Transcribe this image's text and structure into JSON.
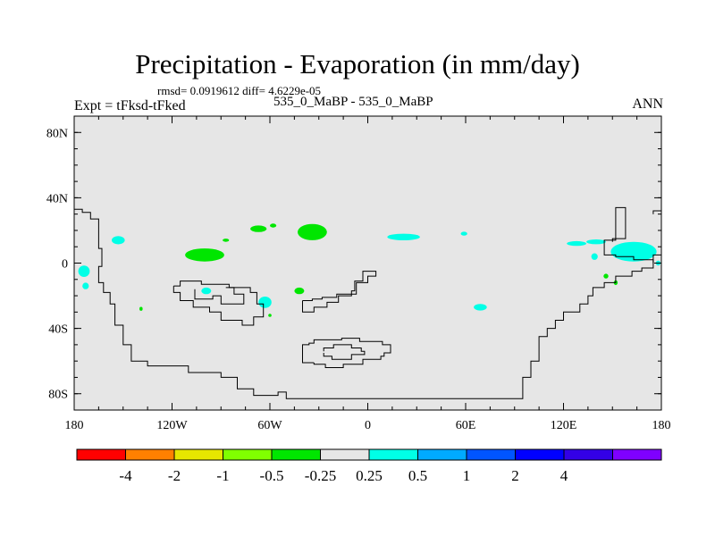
{
  "title": "Precipitation - Evaporation (in mm/day)",
  "stats": "rmsd= 0.0919612 diff= 4.6229e-05",
  "left_subtitle": "Expt = tFksd-tFked",
  "center_subtitle": "535_0_MaBP - 535_0_MaBP",
  "right_subtitle": "ANN",
  "chart_data": {
    "type": "heatmap",
    "title": "Precipitation - Evaporation (in mm/day)",
    "units": "mm/day",
    "xlim": [
      -180,
      180
    ],
    "ylim": [
      -90,
      90
    ],
    "x_ticks": [
      {
        "value": -180,
        "label": "180"
      },
      {
        "value": -120,
        "label": "120W"
      },
      {
        "value": -60,
        "label": "60W"
      },
      {
        "value": 0,
        "label": "0"
      },
      {
        "value": 60,
        "label": "60E"
      },
      {
        "value": 120,
        "label": "120E"
      },
      {
        "value": 180,
        "label": "180"
      }
    ],
    "y_ticks": [
      {
        "value": 80,
        "label": "80N"
      },
      {
        "value": 40,
        "label": "40N"
      },
      {
        "value": 0,
        "label": "0"
      },
      {
        "value": -40,
        "label": "40S"
      },
      {
        "value": -80,
        "label": "80S"
      }
    ],
    "background_color": "#e6e6e6",
    "colorbar": {
      "colors": [
        "#ff0000",
        "#ff8000",
        "#e6e600",
        "#80ff00",
        "#00e600",
        "#e6e6e6",
        "#00ffe6",
        "#00aaff",
        "#0055ff",
        "#0000ff",
        "#3300e6",
        "#7f00ff"
      ],
      "labels": [
        "-4",
        "-2",
        "-1",
        "-0.5",
        "-0.25",
        "0.25",
        "0.5",
        "1",
        "2",
        "4"
      ]
    },
    "anomaly_patches": [
      {
        "lon": -174,
        "lat": -5,
        "rlon": 3.5,
        "rlat": 3.5,
        "category": "0.25 to 0.5",
        "color": "#00ffe6"
      },
      {
        "lon": -173,
        "lat": -14,
        "rlon": 2,
        "rlat": 2,
        "category": "0.25 to 0.5",
        "color": "#00ffe6"
      },
      {
        "lon": -153,
        "lat": 14,
        "rlon": 4,
        "rlat": 2.5,
        "category": "0.25 to 0.5",
        "color": "#00ffe6"
      },
      {
        "lon": -100,
        "lat": 5,
        "rlon": 12,
        "rlat": 4,
        "category": "-0.5 to -0.25",
        "color": "#00e600"
      },
      {
        "lon": -87,
        "lat": 14,
        "rlon": 2,
        "rlat": 1,
        "category": "-0.5 to -0.25",
        "color": "#00e600"
      },
      {
        "lon": -99,
        "lat": -17,
        "rlon": 3,
        "rlat": 2,
        "category": "0.25 to 0.5",
        "color": "#00ffe6"
      },
      {
        "lon": -63,
        "lat": -24,
        "rlon": 4,
        "rlat": 3.5,
        "category": "0.25 to 0.5",
        "color": "#00ffe6"
      },
      {
        "lon": -67,
        "lat": 21,
        "rlon": 5,
        "rlat": 2,
        "category": "-0.5 to -0.25",
        "color": "#00e600"
      },
      {
        "lon": -58,
        "lat": 23,
        "rlon": 2,
        "rlat": 1.2,
        "category": "-0.5 to -0.25",
        "color": "#00e600"
      },
      {
        "lon": -34,
        "lat": 19,
        "rlon": 9,
        "rlat": 5,
        "category": "-0.5 to -0.25",
        "color": "#00e600"
      },
      {
        "lon": -42,
        "lat": -17,
        "rlon": 3,
        "rlat": 2,
        "category": "-0.5 to -0.25",
        "color": "#00e600"
      },
      {
        "lon": -60,
        "lat": -32,
        "rlon": 1,
        "rlat": 1,
        "category": "-0.5 to -0.25",
        "color": "#00e600"
      },
      {
        "lon": -139,
        "lat": -28,
        "rlon": 1,
        "rlat": 1.2,
        "category": "-0.5 to -0.25",
        "color": "#00e600"
      },
      {
        "lon": 22,
        "lat": 16,
        "rlon": 10,
        "rlat": 2,
        "category": "0.25 to 0.5",
        "color": "#00ffe6"
      },
      {
        "lon": 59,
        "lat": 18,
        "rlon": 2,
        "rlat": 1.2,
        "category": "0.25 to 0.5",
        "color": "#00ffe6"
      },
      {
        "lon": 69,
        "lat": -27,
        "rlon": 4,
        "rlat": 2,
        "category": "0.25 to 0.5",
        "color": "#00ffe6"
      },
      {
        "lon": 128,
        "lat": 12,
        "rlon": 6,
        "rlat": 1.5,
        "category": "0.25 to 0.5",
        "color": "#00ffe6"
      },
      {
        "lon": 140,
        "lat": 13,
        "rlon": 6,
        "rlat": 1.5,
        "category": "0.25 to 0.5",
        "color": "#00ffe6"
      },
      {
        "lon": 163,
        "lat": 7,
        "rlon": 14,
        "rlat": 6,
        "category": "0.25 to 0.5",
        "color": "#00ffe6"
      },
      {
        "lon": 139,
        "lat": 4,
        "rlon": 2,
        "rlat": 2,
        "category": "0.25 to 0.5",
        "color": "#00ffe6"
      },
      {
        "lon": 178,
        "lat": 0,
        "rlon": 1.5,
        "rlat": 1.5,
        "category": "0.25 to 0.5",
        "color": "#00ffe6"
      },
      {
        "lon": 146,
        "lat": -8,
        "rlon": 1.5,
        "rlat": 1.5,
        "category": "-0.5 to -0.25",
        "color": "#00e600"
      },
      {
        "lon": 152,
        "lat": -12,
        "rlon": 1.2,
        "rlat": 1.5,
        "category": "-0.5 to -0.25",
        "color": "#00e600"
      }
    ],
    "continent_outlines": [
      {
        "name": "main",
        "closed": false,
        "points": [
          [
            -180,
            33
          ],
          [
            -175,
            33
          ],
          [
            -175,
            31
          ],
          [
            -170,
            31
          ],
          [
            -170,
            27
          ],
          [
            -165,
            27
          ],
          [
            -165,
            9
          ],
          [
            -163,
            9
          ],
          [
            -163,
            -2
          ],
          [
            -165,
            -2
          ],
          [
            -165,
            -12
          ],
          [
            -162,
            -12
          ],
          [
            -162,
            -18
          ],
          [
            -158,
            -18
          ],
          [
            -158,
            -25
          ],
          [
            -155,
            -25
          ],
          [
            -155,
            -38
          ],
          [
            -150,
            -38
          ],
          [
            -150,
            -50
          ],
          [
            -145,
            -50
          ],
          [
            -145,
            -60
          ],
          [
            -135,
            -60
          ],
          [
            -135,
            -63
          ],
          [
            -110,
            -63
          ],
          [
            -110,
            -67
          ],
          [
            -90,
            -67
          ],
          [
            -90,
            -70
          ],
          [
            -80,
            -70
          ],
          [
            -80,
            -77
          ],
          [
            -70,
            -77
          ],
          [
            -70,
            -81
          ],
          [
            -55,
            -81
          ],
          [
            -55,
            -79
          ],
          [
            -50,
            -79
          ],
          [
            -50,
            -83
          ],
          [
            95,
            -83
          ],
          [
            95,
            -70
          ],
          [
            100,
            -70
          ],
          [
            100,
            -60
          ],
          [
            105,
            -60
          ],
          [
            105,
            -45
          ],
          [
            110,
            -45
          ],
          [
            110,
            -40
          ],
          [
            115,
            -40
          ],
          [
            115,
            -35
          ],
          [
            120,
            -35
          ],
          [
            120,
            -30
          ],
          [
            130,
            -30
          ],
          [
            130,
            -25
          ],
          [
            135,
            -25
          ],
          [
            135,
            -20
          ],
          [
            138,
            -20
          ],
          [
            138,
            -15
          ],
          [
            145,
            -15
          ],
          [
            145,
            -12
          ],
          [
            152,
            -12
          ],
          [
            152,
            -8
          ],
          [
            162,
            -8
          ],
          [
            162,
            -5
          ],
          [
            168,
            -5
          ],
          [
            168,
            -3
          ],
          [
            175,
            -3
          ],
          [
            175,
            5
          ],
          [
            180,
            5
          ]
        ]
      },
      {
        "name": "ne-stub",
        "closed": false,
        "points": [
          [
            180,
            32
          ],
          [
            175,
            32
          ],
          [
            175,
            30
          ]
        ]
      },
      {
        "name": "east",
        "closed": false,
        "points": [
          [
            150,
            13
          ],
          [
            150,
            15
          ],
          [
            158,
            15
          ],
          [
            158,
            34
          ],
          [
            152,
            34
          ],
          [
            152,
            14
          ],
          [
            145,
            14
          ],
          [
            145,
            5
          ],
          [
            152,
            5
          ],
          [
            152,
            4
          ],
          [
            163,
            4
          ],
          [
            163,
            2
          ],
          [
            175,
            2
          ],
          [
            175,
            0
          ]
        ]
      },
      {
        "name": "inner",
        "closed": false,
        "points": [
          [
            -119,
            -14
          ],
          [
            -119,
            -18
          ],
          [
            -115,
            -18
          ],
          [
            -115,
            -23
          ],
          [
            -107,
            -23
          ],
          [
            -107,
            -27
          ],
          [
            -97,
            -27
          ],
          [
            -97,
            -30
          ],
          [
            -90,
            -30
          ],
          [
            -90,
            -35
          ],
          [
            -77,
            -35
          ],
          [
            -77,
            -38
          ],
          [
            -70,
            -38
          ],
          [
            -70,
            -33
          ],
          [
            -64,
            -33
          ],
          [
            -64,
            -25
          ],
          [
            -68,
            -25
          ],
          [
            -68,
            -18
          ],
          [
            -72,
            -18
          ],
          [
            -72,
            -15
          ],
          [
            -85,
            -15
          ],
          [
            -85,
            -13
          ],
          [
            -102,
            -13
          ],
          [
            -102,
            -11
          ],
          [
            -115,
            -11
          ],
          [
            -115,
            -14
          ],
          [
            -119,
            -14
          ]
        ]
      },
      {
        "name": "inner-notch",
        "closed": false,
        "points": [
          [
            -106,
            -16
          ],
          [
            -106,
            -22
          ],
          [
            -95,
            -22
          ],
          [
            -95,
            -20
          ],
          [
            -90,
            -20
          ],
          [
            -90,
            -25
          ],
          [
            -76,
            -25
          ],
          [
            -76,
            -19
          ],
          [
            -82,
            -19
          ],
          [
            -82,
            -15
          ],
          [
            -87,
            -15
          ]
        ]
      },
      {
        "name": "middle",
        "closed": false,
        "points": [
          [
            -40,
            -23
          ],
          [
            -40,
            -30
          ],
          [
            -33,
            -30
          ],
          [
            -33,
            -27
          ],
          [
            -25,
            -27
          ],
          [
            -25,
            -24
          ],
          [
            -18,
            -24
          ],
          [
            -18,
            -20
          ],
          [
            -10,
            -20
          ],
          [
            -10,
            -17
          ],
          [
            -8,
            -17
          ],
          [
            -8,
            -11
          ],
          [
            -3,
            -11
          ],
          [
            -3,
            -5
          ],
          [
            5,
            -5
          ],
          [
            5,
            -8
          ],
          [
            0,
            -8
          ],
          [
            0,
            -12
          ],
          [
            -7,
            -12
          ],
          [
            -7,
            -19
          ],
          [
            -19,
            -19
          ],
          [
            -19,
            -21
          ],
          [
            -28,
            -21
          ],
          [
            -28,
            -22
          ],
          [
            -34,
            -22
          ],
          [
            -34,
            -23
          ],
          [
            -40,
            -23
          ]
        ]
      },
      {
        "name": "south-loop",
        "closed": false,
        "points": [
          [
            -33,
            -61
          ],
          [
            -33,
            -62
          ],
          [
            -26,
            -62
          ],
          [
            -26,
            -64
          ],
          [
            -15,
            -64
          ],
          [
            -15,
            -62
          ],
          [
            -3,
            -62
          ],
          [
            -3,
            -59
          ],
          [
            8,
            -59
          ],
          [
            8,
            -57
          ],
          [
            10,
            -57
          ],
          [
            10,
            -55
          ],
          [
            14,
            -55
          ],
          [
            14,
            -50
          ],
          [
            9,
            -50
          ],
          [
            9,
            -48
          ],
          [
            -5,
            -48
          ],
          [
            -5,
            -46
          ],
          [
            -16,
            -46
          ],
          [
            -16,
            -47
          ],
          [
            -33,
            -47
          ],
          [
            -33,
            -49
          ],
          [
            -36,
            -49
          ],
          [
            -36,
            -50
          ],
          [
            -40,
            -50
          ],
          [
            -40,
            -61
          ],
          [
            -33,
            -61
          ]
        ]
      },
      {
        "name": "south-inner",
        "closed": false,
        "points": [
          [
            -27,
            -54
          ],
          [
            -27,
            -52
          ],
          [
            -21,
            -52
          ],
          [
            -21,
            -50
          ],
          [
            -10,
            -50
          ],
          [
            -10,
            -52
          ],
          [
            -4,
            -52
          ],
          [
            -4,
            -54
          ],
          [
            -2,
            -54
          ],
          [
            -2,
            -56
          ],
          [
            -10,
            -56
          ],
          [
            -10,
            -59
          ],
          [
            -22,
            -59
          ],
          [
            -22,
            -57
          ],
          [
            -27,
            -57
          ],
          [
            -27,
            -55
          ]
        ]
      }
    ]
  }
}
